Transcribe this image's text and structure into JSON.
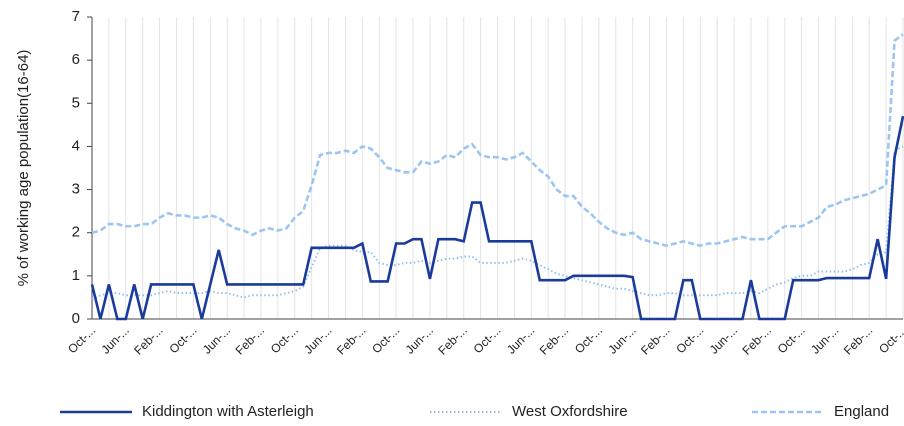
{
  "chart_data": {
    "type": "line",
    "y_label": "% of working age population(16-64)",
    "categories": [
      "Oct-...",
      null,
      null,
      null,
      "Jun-...",
      null,
      null,
      null,
      "Feb-...",
      null,
      null,
      null,
      "Oct-...",
      null,
      null,
      null,
      "Jun-...",
      null,
      null,
      null,
      "Feb-...",
      null,
      null,
      null,
      "Oct-...",
      null,
      null,
      null,
      "Jun-...",
      null,
      null,
      null,
      "Feb-...",
      null,
      null,
      null,
      "Oct-...",
      null,
      null,
      null,
      "Jun-...",
      null,
      null,
      null,
      "Feb-...",
      null,
      null,
      null,
      "Oct-...",
      null,
      null,
      null,
      "Jun-...",
      null,
      null,
      null,
      "Feb-...",
      null,
      null,
      null,
      "Oct-...",
      null,
      null,
      null,
      "Jun-...",
      null,
      null,
      null,
      "Feb-...",
      null,
      null,
      null,
      "Oct-...",
      null,
      null,
      null,
      "Jun-...",
      null,
      null,
      null,
      "Feb-...",
      null,
      null,
      null,
      "Oct-...",
      null,
      null,
      null,
      "Jun-...",
      null,
      null,
      null,
      "Feb-...",
      null,
      null,
      null,
      "Oct-..."
    ],
    "series": [
      {
        "name": "Kiddington with Asterleigh",
        "color": "#1a3a9c",
        "style": "solid",
        "values": [
          0.8,
          0,
          0.8,
          0,
          0,
          0.8,
          0,
          0.8,
          0.8,
          0.8,
          0.8,
          0.8,
          0.8,
          0,
          0.8,
          1.6,
          0.8,
          0.8,
          0.8,
          0.8,
          0.8,
          0.8,
          0.8,
          0.8,
          0.8,
          0.8,
          1.65,
          1.65,
          1.65,
          1.65,
          1.65,
          1.65,
          1.75,
          0.87,
          0.87,
          0.87,
          1.75,
          1.75,
          1.85,
          1.85,
          0.93,
          1.85,
          1.85,
          1.85,
          1.8,
          2.7,
          2.7,
          1.8,
          1.8,
          1.8,
          1.8,
          1.8,
          1.8,
          0.9,
          0.9,
          0.9,
          0.9,
          1.0,
          1.0,
          1.0,
          1.0,
          1.0,
          1.0,
          1.0,
          0.97,
          0,
          0,
          0,
          0,
          0,
          0.9,
          0.9,
          0,
          0,
          0,
          0,
          0,
          0,
          0.9,
          0,
          0,
          0,
          0,
          0.9,
          0.9,
          0.9,
          0.9,
          0.95,
          0.95,
          0.95,
          0.95,
          0.95,
          0.95,
          1.85,
          0.93,
          3.75,
          4.7
        ]
      },
      {
        "name": "West Oxfordshire",
        "color": "#8ec1f0",
        "style": "dotted",
        "values": [
          0.45,
          0.55,
          0.6,
          0.6,
          0.55,
          0.55,
          0.55,
          0.55,
          0.6,
          0.65,
          0.6,
          0.6,
          0.6,
          0.6,
          0.65,
          0.6,
          0.6,
          0.55,
          0.5,
          0.55,
          0.55,
          0.55,
          0.55,
          0.6,
          0.65,
          0.75,
          1.2,
          1.65,
          1.7,
          1.7,
          1.7,
          1.6,
          1.55,
          1.55,
          1.3,
          1.25,
          1.25,
          1.3,
          1.3,
          1.35,
          1.3,
          1.35,
          1.4,
          1.4,
          1.45,
          1.45,
          1.3,
          1.3,
          1.3,
          1.3,
          1.35,
          1.4,
          1.35,
          1.25,
          1.15,
          1.05,
          1.0,
          0.95,
          0.9,
          0.85,
          0.8,
          0.75,
          0.7,
          0.7,
          0.65,
          0.6,
          0.55,
          0.55,
          0.6,
          0.6,
          0.55,
          0.55,
          0.55,
          0.55,
          0.55,
          0.6,
          0.6,
          0.6,
          0.65,
          0.6,
          0.7,
          0.8,
          0.85,
          0.95,
          1.0,
          1.0,
          1.1,
          1.1,
          1.1,
          1.1,
          1.15,
          1.25,
          1.3,
          1.5,
          1.55,
          3.9,
          4.0
        ]
      },
      {
        "name": "England",
        "color": "#9cc5f2",
        "style": "dashed",
        "values": [
          2.0,
          2.05,
          2.2,
          2.2,
          2.15,
          2.15,
          2.2,
          2.2,
          2.35,
          2.45,
          2.4,
          2.4,
          2.35,
          2.35,
          2.4,
          2.35,
          2.2,
          2.1,
          2.05,
          1.95,
          2.05,
          2.1,
          2.05,
          2.1,
          2.35,
          2.5,
          3.1,
          3.8,
          3.85,
          3.85,
          3.9,
          3.85,
          4.0,
          3.95,
          3.75,
          3.5,
          3.45,
          3.4,
          3.4,
          3.65,
          3.6,
          3.65,
          3.8,
          3.75,
          3.95,
          4.05,
          3.8,
          3.75,
          3.75,
          3.7,
          3.75,
          3.85,
          3.65,
          3.45,
          3.3,
          3.0,
          2.85,
          2.85,
          2.6,
          2.45,
          2.25,
          2.1,
          2.0,
          1.95,
          2.0,
          1.85,
          1.8,
          1.75,
          1.7,
          1.75,
          1.8,
          1.75,
          1.7,
          1.75,
          1.75,
          1.8,
          1.85,
          1.9,
          1.85,
          1.85,
          1.85,
          2.0,
          2.15,
          2.15,
          2.15,
          2.25,
          2.35,
          2.6,
          2.65,
          2.75,
          2.8,
          2.85,
          2.9,
          3.0,
          3.1,
          6.45,
          6.6
        ]
      }
    ],
    "ylim": [
      0,
      7
    ],
    "yticks": [
      0,
      1,
      2,
      3,
      4,
      5,
      6,
      7
    ],
    "grid": true,
    "legend": "bottom"
  }
}
